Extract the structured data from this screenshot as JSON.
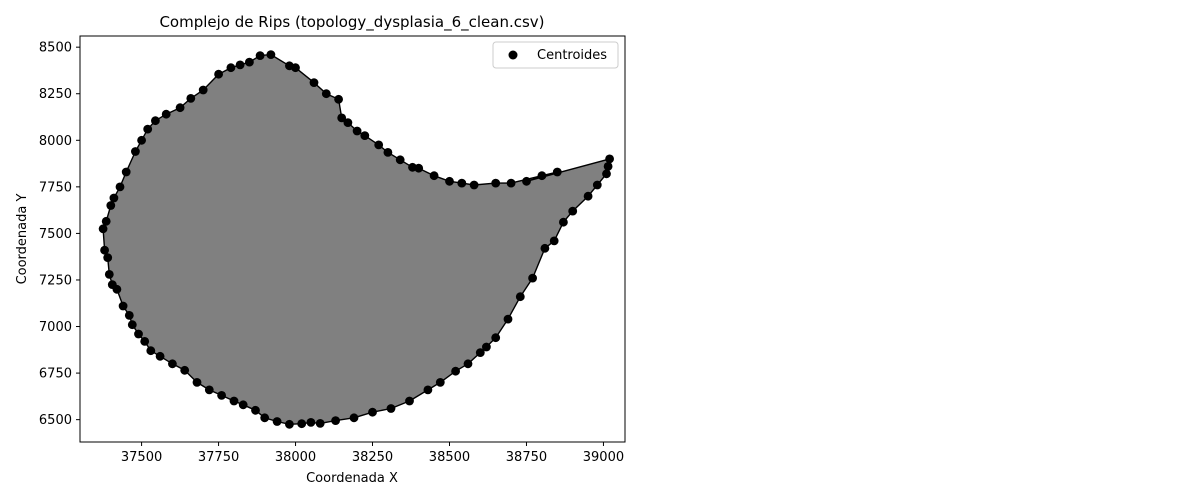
{
  "chart_data": {
    "type": "scatter",
    "title": "Complejo de Rips (topology_dysplasia_6_clean.csv)",
    "xlabel": "Coordenada X",
    "ylabel": "Coordenada Y",
    "xlim": [
      37300,
      39070
    ],
    "ylim": [
      6380,
      8560
    ],
    "xticks": [
      37500,
      37750,
      38000,
      38250,
      38500,
      38750,
      39000
    ],
    "yticks": [
      6500,
      6750,
      7000,
      7250,
      7500,
      7750,
      8000,
      8250,
      8500
    ],
    "legend": {
      "position": "top-right",
      "entries": [
        "Centroides"
      ]
    },
    "grid": false,
    "colors": {
      "fill": "#808080",
      "points": "#000000",
      "edges": "#000000"
    },
    "series": [
      {
        "name": "Centroides",
        "points": [
          [
            37375,
            7525
          ],
          [
            37380,
            7410
          ],
          [
            37385,
            7565
          ],
          [
            37390,
            7370
          ],
          [
            37395,
            7280
          ],
          [
            37400,
            7650
          ],
          [
            37405,
            7225
          ],
          [
            37410,
            7690
          ],
          [
            37420,
            7200
          ],
          [
            37430,
            7750
          ],
          [
            37440,
            7110
          ],
          [
            37450,
            7830
          ],
          [
            37460,
            7060
          ],
          [
            37470,
            7010
          ],
          [
            37480,
            7940
          ],
          [
            37490,
            6960
          ],
          [
            37500,
            8000
          ],
          [
            37510,
            6920
          ],
          [
            37520,
            8060
          ],
          [
            37530,
            6870
          ],
          [
            37545,
            8105
          ],
          [
            37560,
            6840
          ],
          [
            37580,
            8140
          ],
          [
            37600,
            6800
          ],
          [
            37625,
            8175
          ],
          [
            37640,
            6765
          ],
          [
            37660,
            8225
          ],
          [
            37680,
            6700
          ],
          [
            37700,
            8270
          ],
          [
            37720,
            6660
          ],
          [
            37750,
            8355
          ],
          [
            37760,
            6630
          ],
          [
            37790,
            8390
          ],
          [
            37800,
            6600
          ],
          [
            37820,
            8405
          ],
          [
            37830,
            6580
          ],
          [
            37850,
            8420
          ],
          [
            37870,
            6550
          ],
          [
            37885,
            8455
          ],
          [
            37900,
            6510
          ],
          [
            37920,
            8460
          ],
          [
            37940,
            6490
          ],
          [
            37980,
            8400
          ],
          [
            37980,
            6475
          ],
          [
            38000,
            8390
          ],
          [
            38020,
            6478
          ],
          [
            38060,
            8310
          ],
          [
            38050,
            6485
          ],
          [
            38080,
            6480
          ],
          [
            38100,
            8250
          ],
          [
            38130,
            6495
          ],
          [
            38140,
            8220
          ],
          [
            38150,
            8120
          ],
          [
            38170,
            8095
          ],
          [
            38190,
            6510
          ],
          [
            38200,
            8050
          ],
          [
            38225,
            8025
          ],
          [
            38250,
            6540
          ],
          [
            38270,
            7975
          ],
          [
            38300,
            7935
          ],
          [
            38310,
            6560
          ],
          [
            38340,
            7895
          ],
          [
            38370,
            6600
          ],
          [
            38380,
            7855
          ],
          [
            38400,
            7850
          ],
          [
            38430,
            6660
          ],
          [
            38450,
            7810
          ],
          [
            38470,
            6700
          ],
          [
            38500,
            7780
          ],
          [
            38520,
            6760
          ],
          [
            38540,
            7770
          ],
          [
            38560,
            6800
          ],
          [
            38580,
            7760
          ],
          [
            38600,
            6860
          ],
          [
            38620,
            6890
          ],
          [
            38650,
            7770
          ],
          [
            38650,
            6940
          ],
          [
            38690,
            7040
          ],
          [
            38700,
            7770
          ],
          [
            38730,
            7160
          ],
          [
            38750,
            7780
          ],
          [
            38770,
            7260
          ],
          [
            38800,
            7810
          ],
          [
            38810,
            7420
          ],
          [
            38850,
            7830
          ],
          [
            38840,
            7460
          ],
          [
            38870,
            7560
          ],
          [
            38900,
            7620
          ],
          [
            38950,
            7700
          ],
          [
            38980,
            7760
          ],
          [
            39010,
            7820
          ],
          [
            39015,
            7860
          ],
          [
            39020,
            7900
          ]
        ]
      }
    ]
  }
}
